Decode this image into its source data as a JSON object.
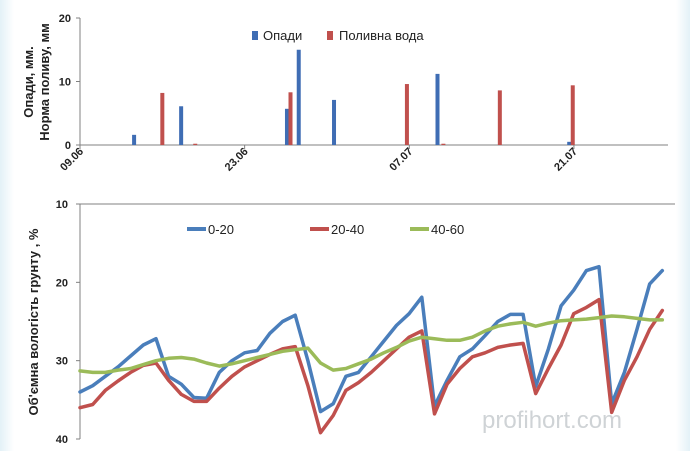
{
  "chart_data": [
    {
      "type": "bar",
      "ylabel_lines": [
        "Опади, мм.",
        "Норма поливу, мм"
      ],
      "ylim": [
        0,
        20
      ],
      "yticks": [
        0,
        10,
        20
      ],
      "xlim": [
        0,
        50
      ],
      "xticks": [
        {
          "x": 0,
          "label": "09.06"
        },
        {
          "x": 14,
          "label": "23.06"
        },
        {
          "x": 28,
          "label": "07.07"
        },
        {
          "x": 42,
          "label": "21.07"
        }
      ],
      "legend_position": "top-center",
      "series": [
        {
          "name": "Опади",
          "color": "#3f6db4",
          "points": [
            [
              4.6,
              1.6
            ],
            [
              8.6,
              6.1
            ],
            [
              17.6,
              5.7
            ],
            [
              18.6,
              15.0
            ],
            [
              21.6,
              7.1
            ],
            [
              30.4,
              11.2
            ],
            [
              41.6,
              0.5
            ]
          ]
        },
        {
          "name": "Поливна вода",
          "color": "#c0504d",
          "points": [
            [
              7.0,
              8.2
            ],
            [
              9.8,
              0.2
            ],
            [
              17.9,
              8.3
            ],
            [
              27.8,
              9.6
            ],
            [
              30.9,
              0.2
            ],
            [
              35.7,
              8.6
            ],
            [
              41.9,
              9.4
            ]
          ]
        }
      ]
    },
    {
      "type": "line",
      "ylabel": "Об'ємна вологість грунту , %",
      "ylim": [
        10,
        40
      ],
      "y_inverted": true,
      "yticks": [
        10,
        20,
        30,
        40
      ],
      "xlim": [
        0,
        47
      ],
      "legend_position": "top",
      "series": [
        {
          "name": "0-20",
          "color": "#4a7ebb",
          "values": [
            34,
            33.2,
            32,
            30.8,
            29.4,
            28,
            27.2,
            32,
            33,
            34.7,
            34.8,
            31.5,
            30,
            29,
            28.7,
            26.5,
            25,
            24.2,
            30,
            36.5,
            35.5,
            32,
            31.5,
            29.5,
            27.5,
            25.5,
            24,
            21.9,
            35.8,
            32.5,
            29.5,
            28.5,
            26.8,
            25,
            24.1,
            24.1,
            33.3,
            28.5,
            23,
            21,
            18.5,
            18,
            35.5,
            31.5,
            26,
            20.2,
            18.5
          ]
        },
        {
          "name": "20-40",
          "color": "#c0504d",
          "values": [
            36,
            35.6,
            33.8,
            32.6,
            31.5,
            30.6,
            30.3,
            32.5,
            34.3,
            35.2,
            35.2,
            33.5,
            32,
            30.8,
            30,
            29.2,
            28.5,
            28.2,
            33.2,
            39.2,
            37,
            33.8,
            32.8,
            31.5,
            30,
            28.5,
            27,
            26.2,
            36.8,
            33,
            31,
            29.5,
            29,
            28.3,
            28,
            27.8,
            34.2,
            31,
            28,
            24,
            23.2,
            22.2,
            36.6,
            32.5,
            29.5,
            26,
            23.6
          ]
        },
        {
          "name": "40-60",
          "color": "#9bbb59",
          "values": [
            31.3,
            31.5,
            31.5,
            31.2,
            31,
            30.5,
            30,
            29.7,
            29.6,
            29.8,
            30.3,
            30.7,
            30.4,
            30,
            29.6,
            29.2,
            28.8,
            28.6,
            28.4,
            30.3,
            31.2,
            31,
            30.4,
            29.8,
            29,
            28.3,
            27.5,
            27,
            27.2,
            27.4,
            27.4,
            27,
            26.2,
            25.6,
            25.3,
            25.1,
            25.6,
            25.2,
            24.9,
            24.8,
            24.7,
            24.5,
            24.3,
            24.4,
            24.6,
            24.8,
            24.8
          ]
        }
      ]
    }
  ],
  "watermark": "profihort.com"
}
